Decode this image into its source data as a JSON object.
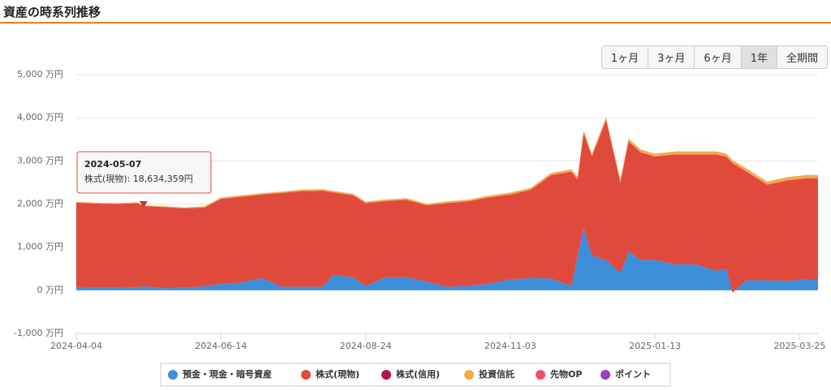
{
  "header": {
    "title": "資産の時系列推移"
  },
  "range_buttons": [
    "1ヶ月",
    "3ヶ月",
    "6ヶ月",
    "1年",
    "全期間"
  ],
  "active_range": "1年",
  "chart_data": {
    "type": "stacked-area",
    "x": [
      "2024-04-04",
      "2024-04-14",
      "2024-04-24",
      "2024-05-04",
      "2024-05-07",
      "2024-05-17",
      "2024-05-27",
      "2024-06-06",
      "2024-06-14",
      "2024-06-24",
      "2024-07-04",
      "2024-07-14",
      "2024-07-24",
      "2024-08-03",
      "2024-08-08",
      "2024-08-18",
      "2024-08-24",
      "2024-09-03",
      "2024-09-13",
      "2024-09-23",
      "2024-10-03",
      "2024-10-13",
      "2024-10-23",
      "2024-11-03",
      "2024-11-13",
      "2024-11-23",
      "2024-12-03",
      "2024-12-06",
      "2024-12-09",
      "2024-12-13",
      "2024-12-20",
      "2024-12-27",
      "2024-12-31",
      "2025-01-06",
      "2025-01-13",
      "2025-01-23",
      "2025-02-02",
      "2025-02-12",
      "2025-02-17",
      "2025-02-20",
      "2025-02-27",
      "2025-03-09",
      "2025-03-19",
      "2025-03-29",
      "2025-04-03"
    ],
    "series": [
      {
        "name": "預金・現金・暗号資産",
        "color": "#3d8fd9",
        "values": [
          80,
          60,
          60,
          70,
          90,
          50,
          60,
          90,
          150,
          180,
          280,
          80,
          80,
          80,
          350,
          300,
          100,
          300,
          300,
          200,
          80,
          100,
          150,
          250,
          280,
          270,
          100,
          800,
          1450,
          800,
          700,
          400,
          900,
          700,
          700,
          600,
          600,
          450,
          500,
          -50,
          230,
          230,
          220,
          250,
          250
        ]
      },
      {
        "name": "株式(現物)",
        "color": "#e04a3c",
        "values": [
          1950,
          1950,
          1940,
          1950,
          1863,
          1880,
          1840,
          1830,
          1970,
          1990,
          1940,
          2180,
          2220,
          2230,
          1920,
          1900,
          1920,
          1770,
          1800,
          1770,
          1940,
          1960,
          2000,
          1970,
          2050,
          2400,
          2650,
          1770,
          2200,
          2300,
          3250,
          2100,
          2550,
          2500,
          2400,
          2550,
          2550,
          2700,
          2600,
          3000,
          2520,
          2220,
          2330,
          2350,
          2350
        ]
      },
      {
        "name": "株式(信用)",
        "color": "#b5124a",
        "values": [
          0,
          0,
          0,
          0,
          0,
          0,
          0,
          0,
          0,
          0,
          0,
          0,
          0,
          0,
          0,
          0,
          0,
          0,
          0,
          0,
          0,
          0,
          0,
          0,
          0,
          0,
          0,
          0,
          0,
          0,
          0,
          0,
          0,
          0,
          0,
          0,
          0,
          0,
          0,
          0,
          0,
          0,
          0,
          0,
          0
        ]
      },
      {
        "name": "投資信託",
        "color": "#f5a94a",
        "values": [
          20,
          20,
          20,
          20,
          20,
          20,
          20,
          25,
          30,
          30,
          30,
          30,
          35,
          35,
          35,
          35,
          35,
          35,
          35,
          35,
          40,
          40,
          40,
          45,
          45,
          50,
          55,
          55,
          60,
          60,
          60,
          60,
          65,
          65,
          65,
          70,
          70,
          70,
          70,
          70,
          70,
          70,
          75,
          75,
          75
        ]
      },
      {
        "name": "先物OP",
        "color": "#f0506e",
        "values": [
          0,
          0,
          0,
          0,
          0,
          0,
          0,
          0,
          0,
          0,
          0,
          0,
          0,
          0,
          0,
          0,
          0,
          0,
          0,
          0,
          0,
          0,
          0,
          0,
          0,
          0,
          0,
          0,
          0,
          0,
          0,
          0,
          0,
          0,
          0,
          0,
          0,
          0,
          0,
          0,
          0,
          0,
          0,
          0,
          0
        ]
      },
      {
        "name": "ポイント",
        "color": "#9b3fc4",
        "values": [
          0,
          0,
          0,
          0,
          0,
          0,
          0,
          0,
          0,
          0,
          0,
          0,
          0,
          0,
          0,
          0,
          0,
          0,
          0,
          0,
          0,
          0,
          0,
          0,
          0,
          0,
          0,
          0,
          0,
          0,
          0,
          0,
          0,
          0,
          0,
          0,
          0,
          0,
          0,
          0,
          0,
          0,
          0,
          0,
          0
        ]
      }
    ],
    "xlim": [
      "2024-04-04",
      "2025-04-03"
    ],
    "xticks": [
      "2024-04-04",
      "2024-06-14",
      "2024-08-24",
      "2024-11-03",
      "2025-01-13",
      "2025-03-25"
    ],
    "ylim": [
      -1000,
      5000
    ],
    "yticks": [
      {
        "value": -1000,
        "label": "-1,000 万円"
      },
      {
        "value": 0,
        "label": "0 万円"
      },
      {
        "value": 1000,
        "label": "1,000 万円"
      },
      {
        "value": 2000,
        "label": "2,000 万円"
      },
      {
        "value": 3000,
        "label": "3,000 万円"
      },
      {
        "value": 4000,
        "label": "4,000 万円"
      },
      {
        "value": 5000,
        "label": "5,000 万円"
      }
    ],
    "grid": true,
    "tooltip": {
      "title": "2024-05-07",
      "text": "株式(現物): 18,634,359円"
    }
  }
}
